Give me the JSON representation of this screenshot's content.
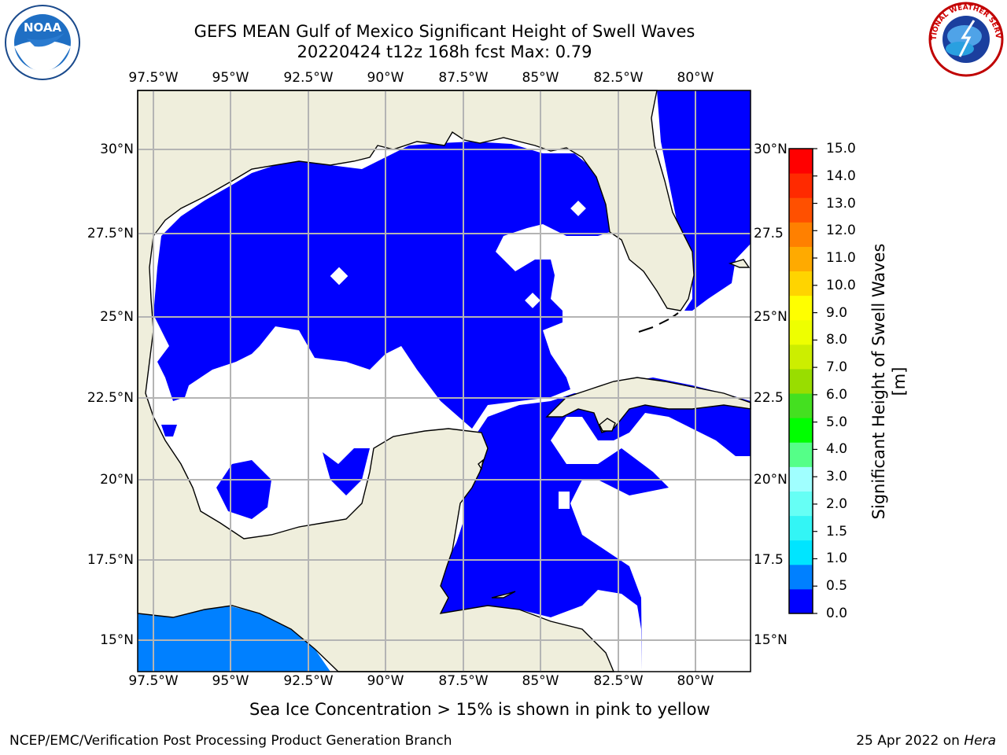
{
  "header": {
    "title_line1": "GEFS MEAN Gulf of Mexico Significant Height of Swell Waves",
    "title_line2": "20220424 t12z 168h fcst   Max: 0.79"
  },
  "map": {
    "region": "Gulf of Mexico",
    "lon_ticks": [
      "97.5°W",
      "95°W",
      "92.5°W",
      "90°W",
      "87.5°W",
      "85°W",
      "82.5°W",
      "80°W"
    ],
    "lat_ticks": [
      "30°N",
      "27.5°N",
      "25°N",
      "22.5°N",
      "20°N",
      "17.5°N",
      "15°N"
    ],
    "lat_ticks_right": [
      "30°N",
      "27.5",
      "25°N",
      "22.5",
      "20°N",
      "17.5",
      "15°N"
    ],
    "land_color": "#efeedc",
    "grid_color": "#b4b4b4",
    "legend_swell_0_05_color": "#0000ff",
    "legend_swell_05_1_color": "#0080ff"
  },
  "colorbar": {
    "label": "Significant Height of Swell Waves [m]",
    "ticks": [
      "15.0",
      "14.0",
      "13.0",
      "12.0",
      "11.0",
      "10.0",
      "9.0",
      "8.0",
      "7.0",
      "6.0",
      "5.0",
      "4.0",
      "3.0",
      "2.0",
      "1.5",
      "1.0",
      "0.5",
      "0.0"
    ],
    "colors_bottom_to_top": [
      "#0000ff",
      "#0080ff",
      "#00e5ff",
      "#33f5f5",
      "#66fff5",
      "#a0ffff",
      "#55ff88",
      "#00ff00",
      "#44e020",
      "#99dd00",
      "#ccee00",
      "#eeff00",
      "#ffff00",
      "#ffd400",
      "#ffaa00",
      "#ff8000",
      "#ff5000",
      "#ff2a00",
      "#ff0000"
    ]
  },
  "footer": {
    "note": "Sea Ice Concentration > 15% is shown in pink to yellow",
    "left": "NCEP/EMC/Verification Post Processing Product Generation Branch",
    "date": "25 Apr 2022 on ",
    "host": "Hera"
  },
  "logos": {
    "noaa": "NOAA",
    "nws": "NATIONAL WEATHER SERVICE"
  }
}
